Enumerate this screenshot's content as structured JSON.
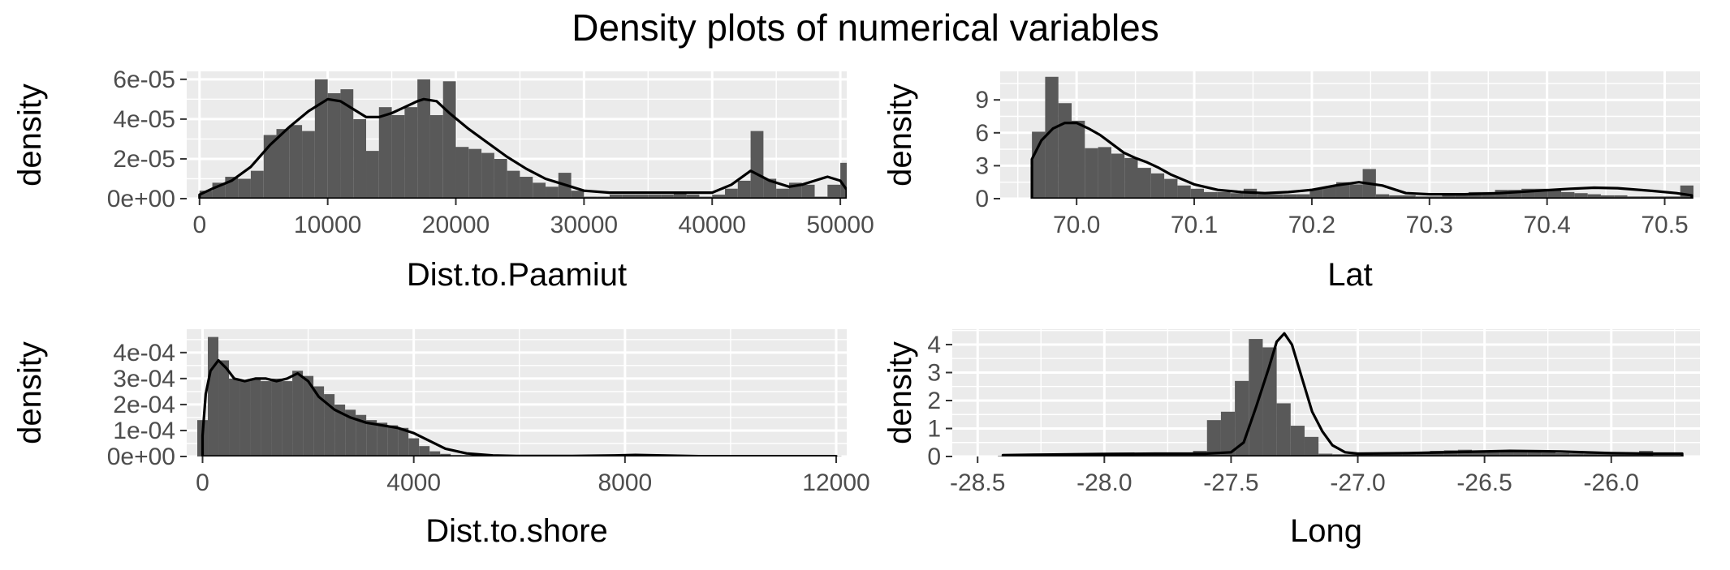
{
  "title": "Density plots of numerical variables",
  "colors": {
    "panel_background": "#ebebeb",
    "grid_major": "#ffffff",
    "bar_fill": "#595959",
    "density_line": "#000000",
    "tick_text": "#4d4d4d"
  },
  "chart_data": [
    {
      "type": "bar",
      "subtype": "histogram-with-density",
      "xlabel": "Dist.to.Paamiut",
      "ylabel": "density",
      "xlim": [
        -1000,
        50500
      ],
      "ylim": [
        0,
        6.4e-05
      ],
      "xticks": [
        0,
        10000,
        20000,
        30000,
        40000,
        50000
      ],
      "xtick_labels": [
        "0",
        "10000",
        "20000",
        "30000",
        "40000",
        "50000"
      ],
      "yticks": [
        0,
        2e-05,
        4e-05,
        6e-05
      ],
      "ytick_labels": [
        "0e+00",
        "2e-05",
        "4e-05",
        "6e-05"
      ],
      "bin_start": 0,
      "bin_width": 1000,
      "bar_heights": [
        4e-06,
        8e-06,
        1.1e-05,
        1e-05,
        1.4e-05,
        3.2e-05,
        3.5e-05,
        3.7e-05,
        3.4e-05,
        6e-05,
        5.3e-05,
        5.5e-05,
        4e-05,
        2.4e-05,
        4.6e-05,
        4.2e-05,
        4.6e-05,
        6e-05,
        4.2e-05,
        5.9e-05,
        2.6e-05,
        2.5e-05,
        2.3e-05,
        2e-05,
        1.4e-05,
        1.1e-05,
        8e-06,
        6e-06,
        1.3e-05,
        4e-06,
        1e-06,
        1e-06,
        2e-06,
        2e-06,
        2e-06,
        2e-06,
        2e-06,
        3e-06,
        2e-06,
        1e-06,
        2e-06,
        5e-06,
        9e-06,
        3.4e-05,
        1e-05,
        5e-06,
        8e-06,
        7e-06,
        1e-06,
        7e-06,
        1.8e-05
      ],
      "density_x": [
        0,
        1000,
        2500,
        4000,
        5500,
        7000,
        8500,
        10000,
        11000,
        12000,
        13000,
        14000,
        15000,
        16000,
        17000,
        17500,
        18500,
        19500,
        21000,
        22500,
        24000,
        25500,
        27000,
        28500,
        30000,
        32000,
        34000,
        36000,
        38000,
        40000,
        41500,
        43000,
        44500,
        46000,
        47000,
        48000,
        49000,
        50000,
        50500
      ],
      "density_y": [
        2e-06,
        5e-06,
        9e-06,
        1.6e-05,
        2.7e-05,
        3.6e-05,
        4.4e-05,
        5e-05,
        4.9e-05,
        4.5e-05,
        4.1e-05,
        4.1e-05,
        4.3e-05,
        4.6e-05,
        4.9e-05,
        5e-05,
        4.9e-05,
        4.3e-05,
        3.5e-05,
        2.8e-05,
        2.1e-05,
        1.5e-05,
        1e-05,
        7e-06,
        4e-06,
        3e-06,
        3e-06,
        3e-06,
        3e-06,
        3e-06,
        7e-06,
        1.4e-05,
        9e-06,
        6e-06,
        7e-06,
        9e-06,
        1.1e-05,
        9e-06,
        4.5e-06
      ]
    },
    {
      "type": "bar",
      "subtype": "histogram-with-density",
      "xlabel": "Lat",
      "ylabel": "density",
      "xlim": [
        69.935,
        70.53
      ],
      "ylim": [
        0,
        11.6
      ],
      "xticks": [
        70.0,
        70.1,
        70.2,
        70.3,
        70.4,
        70.5
      ],
      "xtick_labels": [
        "70.0",
        "70.1",
        "70.2",
        "70.3",
        "70.4",
        "70.5"
      ],
      "yticks": [
        0,
        3,
        6,
        9
      ],
      "ytick_labels": [
        "0",
        "3",
        "6",
        "9"
      ],
      "bin_start": 69.962,
      "bin_width": 0.01125,
      "bar_heights": [
        6.1,
        11.1,
        8.7,
        7.1,
        4.6,
        4.7,
        4.1,
        3.7,
        2.8,
        2.3,
        1.8,
        1.2,
        0.9,
        0.6,
        0.6,
        0.5,
        0.9,
        0.4,
        0.4,
        0.4,
        0.4,
        0.9,
        1.1,
        1.5,
        1.3,
        2.7,
        0.4,
        0.3,
        0.3,
        0.2,
        0.2,
        0.3,
        0.4,
        0.6,
        0.6,
        0.8,
        0.8,
        0.9,
        0.9,
        0.8,
        0.6,
        0.5,
        0.4,
        0.3,
        0.3,
        0.2,
        0.2,
        0.2,
        0.2,
        1.2
      ],
      "density_x": [
        69.962,
        69.97,
        69.98,
        69.99,
        70.0,
        70.01,
        70.02,
        70.03,
        70.04,
        70.05,
        70.06,
        70.07,
        70.08,
        70.1,
        70.12,
        70.14,
        70.16,
        70.18,
        70.2,
        70.22,
        70.24,
        70.26,
        70.28,
        70.3,
        70.33,
        70.36,
        70.39,
        70.42,
        70.44,
        70.46,
        70.49,
        70.51,
        70.523
      ],
      "density_y": [
        3.6,
        5.3,
        6.4,
        6.9,
        6.9,
        6.4,
        5.8,
        5.0,
        4.2,
        3.7,
        3.3,
        2.8,
        2.2,
        1.3,
        0.8,
        0.6,
        0.5,
        0.6,
        0.8,
        1.2,
        1.5,
        1.2,
        0.5,
        0.4,
        0.4,
        0.5,
        0.7,
        0.9,
        1.0,
        0.95,
        0.7,
        0.5,
        0.3
      ]
    },
    {
      "type": "bar",
      "subtype": "histogram-with-density",
      "xlabel": "Dist.to.shore",
      "ylabel": "density",
      "xlim": [
        -300,
        12200
      ],
      "ylim": [
        0,
        0.00049
      ],
      "xticks": [
        0,
        4000,
        8000,
        12000
      ],
      "xtick_labels": [
        "0",
        "4000",
        "8000",
        "12000"
      ],
      "yticks": [
        0,
        0.0001,
        0.0002,
        0.0003,
        0.0004
      ],
      "ytick_labels": [
        "0e+00",
        "1e-04",
        "2e-04",
        "3e-04",
        "4e-04"
      ],
      "bin_start": -100,
      "bin_width": 200,
      "bar_heights": [
        0.00014,
        0.00046,
        0.00037,
        0.0003,
        0.00029,
        0.0003,
        0.00029,
        0.0003,
        0.00029,
        0.00033,
        0.00031,
        0.00027,
        0.00024,
        0.0002,
        0.00018,
        0.00016,
        0.00014,
        0.00013,
        0.00012,
        0.00011,
        7e-05,
        4e-05,
        2e-05,
        1e-05,
        5e-06,
        2e-06,
        1e-06,
        1e-06,
        1e-06,
        1e-06,
        1e-06,
        1e-06,
        1e-06,
        1e-06,
        1e-06,
        1e-06,
        1e-06,
        1e-06,
        1e-06,
        1e-06,
        1e-06,
        5e-06,
        8e-06,
        5e-06,
        1e-06,
        1e-06,
        1e-06,
        1e-06,
        1e-06,
        1e-06,
        1e-06,
        1e-06,
        1e-06,
        1e-06,
        1e-06,
        1e-06,
        1e-06,
        1e-06,
        1e-06,
        1e-06,
        1e-06
      ],
      "density_x": [
        0,
        60,
        150,
        300,
        450,
        600,
        800,
        1000,
        1200,
        1400,
        1600,
        1800,
        2000,
        2200,
        2500,
        2800,
        3100,
        3400,
        3700,
        4000,
        4300,
        4600,
        5000,
        5500,
        6000,
        7000,
        7800,
        8200,
        8700,
        9500,
        10500,
        11500,
        12000
      ],
      "density_y": [
        8e-05,
        0.00024,
        0.00033,
        0.00037,
        0.00034,
        0.0003,
        0.00029,
        0.0003,
        0.0003,
        0.00029,
        0.0003,
        0.00032,
        0.00029,
        0.00023,
        0.00018,
        0.00015,
        0.00013,
        0.00012,
        0.00011,
        9e-05,
        6e-05,
        3e-05,
        1.2e-05,
        4e-06,
        2e-06,
        2e-06,
        4e-06,
        6e-06,
        4e-06,
        1e-06,
        1e-06,
        1e-06,
        1e-06
      ]
    },
    {
      "type": "bar",
      "subtype": "histogram-with-density",
      "xlabel": "Long",
      "ylabel": "density",
      "xlim": [
        -28.6,
        -25.65
      ],
      "ylim": [
        0,
        4.55
      ],
      "xticks": [
        -28.5,
        -28.0,
        -27.5,
        -27.0,
        -26.5,
        -26.0
      ],
      "xtick_labels": [
        "-28.5",
        "-28.0",
        "-27.5",
        "-27.0",
        "-26.5",
        "-26.0"
      ],
      "yticks": [
        0,
        1,
        2,
        3,
        4
      ],
      "ytick_labels": [
        "0",
        "1",
        "2",
        "3",
        "4"
      ],
      "bin_start": -28.42,
      "bin_width": 0.055,
      "bar_heights": [
        0.02,
        0.04,
        0.05,
        0.06,
        0.07,
        0.08,
        0.09,
        0.1,
        0.12,
        0.1,
        0.09,
        0.08,
        0.08,
        0.09,
        0.2,
        1.3,
        1.6,
        2.7,
        4.2,
        3.9,
        1.9,
        1.1,
        0.7,
        0.1,
        0.08,
        0.08,
        0.09,
        0.1,
        0.12,
        0.14,
        0.17,
        0.2,
        0.22,
        0.24,
        0.22,
        0.2,
        0.18,
        0.16,
        0.15,
        0.14,
        0.12,
        0.11,
        0.1,
        0.1,
        0.12,
        0.14,
        0.2
      ],
      "density_x": [
        -28.4,
        -28.2,
        -28.0,
        -27.8,
        -27.6,
        -27.5,
        -27.45,
        -27.4,
        -27.35,
        -27.32,
        -27.29,
        -27.26,
        -27.22,
        -27.18,
        -27.14,
        -27.1,
        -27.05,
        -27.0,
        -26.8,
        -26.6,
        -26.4,
        -26.2,
        -26.0,
        -25.85,
        -25.72
      ],
      "density_y": [
        0.05,
        0.07,
        0.09,
        0.1,
        0.1,
        0.15,
        0.5,
        1.8,
        3.2,
        4.1,
        4.4,
        4.0,
        2.8,
        1.6,
        0.9,
        0.4,
        0.15,
        0.1,
        0.12,
        0.16,
        0.2,
        0.18,
        0.12,
        0.1,
        0.1
      ]
    }
  ]
}
